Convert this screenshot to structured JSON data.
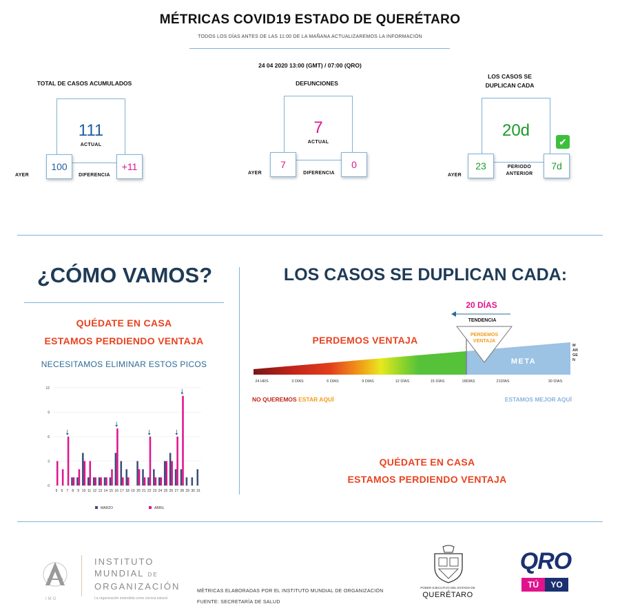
{
  "header": {
    "title": "MÉTRICAS COVID19 ESTADO DE QUERÉTARO",
    "subtitle": "TODOS LOS DÍAS ANTES DE LAS 11:00 DE LA MAÑANA ACTUALIZAREMOS LA INFORMACIÓN",
    "date": "24 04 2020  13:00 (GMT) / 07:00 (QRO)"
  },
  "metrics": {
    "cases": {
      "heading": "TOTAL DE CASOS ACUMULADOS",
      "current": "111",
      "current_label": "ACTUAL",
      "yesterday_label": "AYER",
      "yesterday": "100",
      "diff_label": "DIFERENCIA",
      "diff": "+11",
      "color": "#1f5fa0"
    },
    "deaths": {
      "heading": "DEFUNCIONES",
      "current": "7",
      "current_label": "ACTUAL",
      "yesterday_label": "AYER",
      "yesterday": "7",
      "diff_label": "DIFERENCIA",
      "diff": "0",
      "color": "#e0138c"
    },
    "doubling": {
      "heading_line1": "LOS CASOS SE",
      "heading_line2": "DUPLICAN CADA",
      "current": "20d",
      "yesterday_label": "AYER",
      "yesterday": "23",
      "period_label_1": "PERIODO",
      "period_label_2": "ANTERIOR",
      "period": "7d",
      "color": "#1c9a2a",
      "check": "✔"
    }
  },
  "left_panel": {
    "heading": "¿CÓMO VAMOS?",
    "stay_home": "QUÉDATE EN CASA",
    "losing": "ESTAMOS PERDIENDO VENTAJA",
    "peaks": "NECESITAMOS ELIMINAR ESTOS PICOS"
  },
  "right_panel": {
    "heading": "LOS CASOS SE DUPLICAN CADA:",
    "days_badge": "20 DÍAS",
    "trend": "TENDENCIA",
    "perdemos": "PERDEMOS VENTAJA",
    "perdemos_small_1": "PERDEMOS",
    "perdemos_small_2": "VENTAJA",
    "meta": "META",
    "margen": "MARGEN",
    "scale_labels": [
      "24 HRS",
      "3 DÍAS",
      "6 DÍAS",
      "9 DÍAS",
      "12 DÍAS",
      "15 DÍAS",
      "18DÍAS",
      "21DÍAS",
      "30 DÍAS"
    ],
    "no_queremos": "NO QUEREMOS",
    "estar_aqui": "ESTAR AQUÍ",
    "mejor": "ESTAMOS MEJOR AQUÍ",
    "stay_home": "QUÉDATE EN CASA",
    "losing": "ESTAMOS PERDIENDO VENTAJA"
  },
  "footer": {
    "inst_1": "INSTITUTO",
    "inst_2": "MUNDIAL",
    "inst_2b": "DE",
    "inst_3": "ORGANIZACIÓN",
    "inst_tag": "La organización entendida como ciencia natural",
    "imo": "IMO",
    "credit_1": "MÉTRICAS ELABORADAS POR EL INSTITUTO MUNDIAL DE ORGANIZACIÓN",
    "credit_2": "FUENTE: SECRETARÍA DE SALUD",
    "gov_1": "PODER EJECUTIVO DEL ESTADO DE",
    "gov_2": "QUERÉTARO",
    "qro": "QRO",
    "tu": "TÚ",
    "yo": "YO"
  },
  "chart_data": {
    "type": "bar",
    "categories": [
      "5",
      "6",
      "7",
      "8",
      "9",
      "10",
      "11",
      "12",
      "13",
      "14",
      "15",
      "16",
      "17",
      "18",
      "19",
      "20",
      "21",
      "22",
      "23",
      "24",
      "25",
      "26",
      "27",
      "28",
      "29",
      "30",
      "31"
    ],
    "series": [
      {
        "name": "MARZO",
        "color": "#3b4e78",
        "values": [
          0,
          0,
          0,
          1,
          1,
          4,
          1,
          1,
          1,
          1,
          1,
          4,
          3,
          2,
          0,
          3,
          2,
          1,
          2,
          1,
          3,
          4,
          2,
          2,
          1,
          1,
          2
        ]
      },
      {
        "name": "ABRIL",
        "color": "#e0138c",
        "values": [
          3,
          2,
          6,
          1,
          2,
          3,
          3,
          1,
          1,
          1,
          2,
          7,
          1,
          1,
          0,
          2,
          1,
          6,
          1,
          1,
          3,
          3,
          6,
          11,
          0,
          0,
          0
        ]
      }
    ],
    "yticks": [
      0,
      3,
      6,
      9,
      12
    ],
    "ylim": [
      0,
      12
    ],
    "arrows_at": [
      "7",
      "16",
      "22",
      "27",
      "28"
    ]
  }
}
